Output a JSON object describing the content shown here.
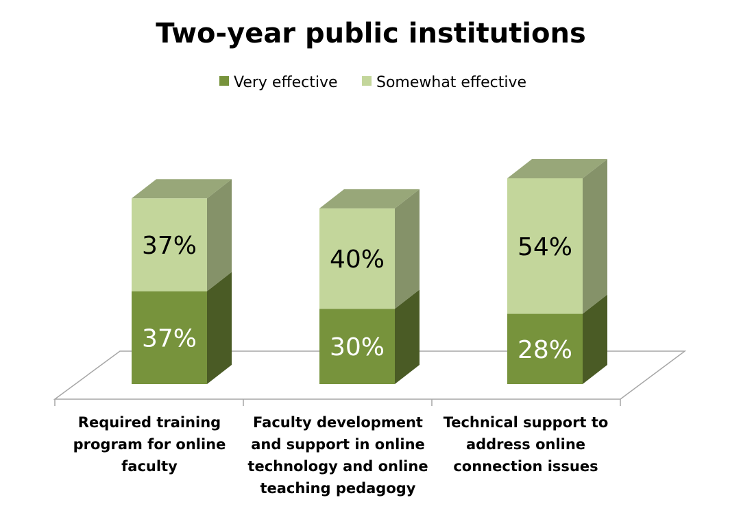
{
  "chart_data": {
    "type": "bar",
    "stacked": true,
    "three_d": true,
    "title": "Two-year public institutions",
    "categories": [
      [
        "Required training",
        "program for online",
        "faculty"
      ],
      [
        "Faculty development",
        "and support in online",
        "technology and online",
        "teaching pedagogy"
      ],
      [
        "Technical support to",
        "address online",
        "connection issues"
      ]
    ],
    "series": [
      {
        "name": "Very effective",
        "values": [
          37,
          30,
          28
        ],
        "labels": [
          "37%",
          "30%",
          "28%"
        ],
        "color": "#77933C",
        "label_color": "#ffffff"
      },
      {
        "name": "Somewhat effective",
        "values": [
          37,
          40,
          54
        ],
        "labels": [
          "37%",
          "40%",
          "54%"
        ],
        "color": "#C3D69B",
        "label_color": "#000000"
      }
    ],
    "legend_position": "top",
    "ylim": [
      0,
      100
    ],
    "grid": false
  }
}
